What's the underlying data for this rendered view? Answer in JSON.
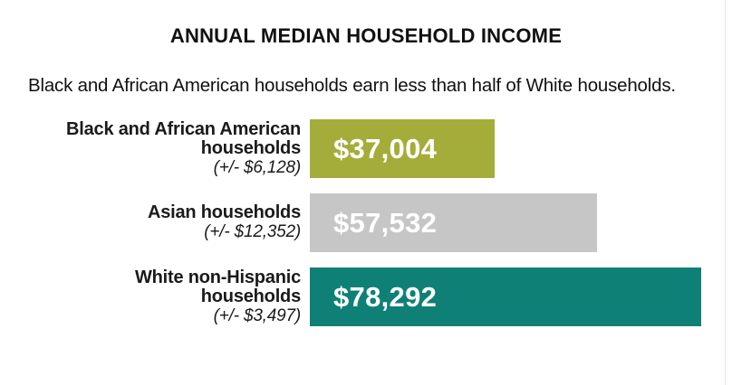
{
  "page": {
    "background": "#ffffff",
    "text_color": "#1a1a1a"
  },
  "chart": {
    "title": "ANNUAL MEDIAN HOUSEHOLD INCOME",
    "subtitle": "Black and African American households earn less than half of White households."
  },
  "rows": [
    {
      "label_lines": [
        "Black and African American",
        "households"
      ],
      "moe": "(+/- $6,128)",
      "value_label": "$37,004",
      "value": 37004,
      "color": "#a5ad3a"
    },
    {
      "label_lines": [
        "Asian households"
      ],
      "moe": "(+/- $12,352)",
      "value_label": "$57,532",
      "value": 57532,
      "color": "#c6c6c6"
    },
    {
      "label_lines": [
        "White non-Hispanic",
        "households"
      ],
      "moe": "(+/- $3,497)",
      "value_label": "$78,292",
      "value": 78292,
      "color": "#0e8076"
    }
  ],
  "chart_data": {
    "type": "bar",
    "orientation": "horizontal",
    "title": "ANNUAL MEDIAN HOUSEHOLD INCOME",
    "subtitle": "Black and African American households earn less than half of White households.",
    "categories": [
      "Black and African American households",
      "Asian households",
      "White non-Hispanic households"
    ],
    "values": [
      37004,
      57532,
      78292
    ],
    "margin_of_error_values": [
      6128,
      12352,
      3497
    ],
    "value_labels": [
      "$37,004",
      "$57,532",
      "$78,292"
    ],
    "moe_labels": [
      "(+/- $6,128)",
      "(+/- $12,352)",
      "(+/- $3,497)"
    ],
    "bar_colors": [
      "#a5ad3a",
      "#c6c6c6",
      "#0e8076"
    ],
    "value_label_color": "#ffffff",
    "value_label_position": "inside-start",
    "xlabel": "",
    "ylabel": "",
    "xlim": [
      0,
      78292
    ],
    "grid": false,
    "legend": false,
    "axis_ticks_visible": false
  }
}
